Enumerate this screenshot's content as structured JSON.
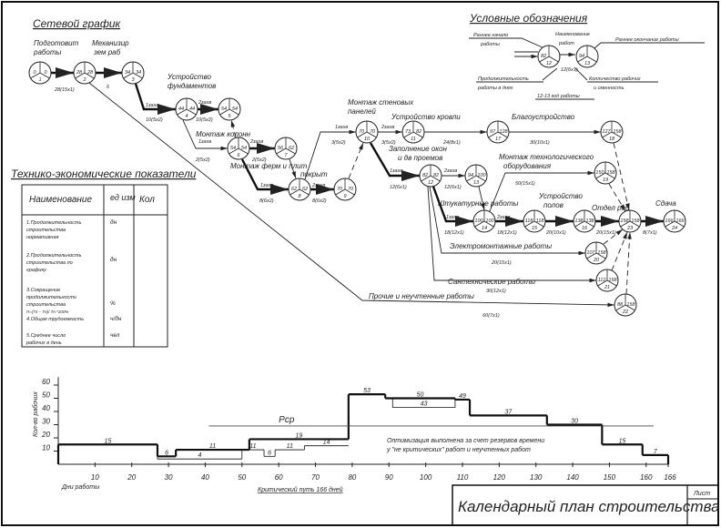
{
  "headings": {
    "network": "Сетевой график",
    "legend": "Условные обозначения",
    "indicators": "Технико-экономические показатели"
  },
  "legend": {
    "early_start": [
      "Раннее начало",
      "работы"
    ],
    "work_name": [
      "Наименование",
      "работ"
    ],
    "early_finish": "Раннее окончание работы",
    "duration": [
      "Продолжительность",
      "работы в днях"
    ],
    "workers": [
      "Колличество рабочих",
      "и сменность"
    ],
    "code": "12-13 код работы",
    "sample_label": "12(6х1)",
    "node_a": [
      "82",
      "",
      "12"
    ],
    "node_b": [
      "94",
      "",
      "13"
    ]
  },
  "nodes": [
    [
      "0",
      "0",
      "1"
    ],
    [
      "28",
      "28",
      "2"
    ],
    [
      "34",
      "34",
      "3"
    ],
    [
      "44",
      "44",
      "4"
    ],
    [
      "54",
      "54",
      "5"
    ],
    [
      "54",
      "54",
      "6"
    ],
    [
      "56",
      "62",
      "7"
    ],
    [
      "62",
      "62",
      "8"
    ],
    [
      "70",
      "70",
      "9"
    ],
    [
      "70",
      "70",
      "10"
    ],
    [
      "73",
      "82",
      "11"
    ],
    [
      "82",
      "82",
      "12"
    ],
    [
      "94",
      "100",
      "13"
    ],
    [
      "100",
      "100",
      "14"
    ],
    [
      "118",
      "118",
      "15"
    ],
    [
      "138",
      "138",
      "16"
    ],
    [
      "97",
      "128",
      "17"
    ],
    [
      "127",
      "158",
      "18"
    ],
    [
      "150",
      "158",
      "19"
    ],
    [
      "107",
      "158",
      "20"
    ],
    [
      "112",
      "158",
      "21"
    ],
    [
      "88",
      "158",
      "22"
    ],
    [
      "158",
      "158",
      "23"
    ],
    [
      "166",
      "166",
      "24"
    ]
  ],
  "activities": [
    [
      "Подготовит",
      "работы"
    ],
    [
      "Механизир",
      "зем раб"
    ],
    [
      "Устройство",
      "фундаментов"
    ],
    [
      "Монтаж колонн"
    ],
    [
      "Монтаж ферм и плит",
      "покрыт"
    ],
    [
      "Монтаж стеновых",
      "панелей"
    ],
    [
      "Устройство кровли"
    ],
    [
      "Благоустройство"
    ],
    [
      "Заполнение окон",
      "и дв проемов"
    ],
    [
      "Монтаж технологического",
      "оборудования"
    ],
    [
      "Штукатурные работы"
    ],
    [
      "Устройство",
      "полов"
    ],
    [
      "Отдел раб"
    ],
    [
      "Сдача"
    ],
    [
      "Электромонтажные работы"
    ],
    [
      "Сантехнические работы"
    ],
    [
      "Прочие и неучтенные работы"
    ]
  ],
  "edge_labels": [
    "28(15х1)",
    "6",
    "1захв",
    "10(5х2)",
    "2захв",
    "10(5х2)",
    "1захв",
    "2(5х2)",
    "2захв",
    "2(5х2)",
    "1захв",
    "8(6х2)",
    "2захв",
    "8(6х2)",
    "1захв",
    "3(5х2)",
    "2захв",
    "3(5х2)",
    "24(8х1)",
    "30(10х1)",
    "1захв",
    "12(6х1)",
    "2захв",
    "12(6х1)",
    "50(15х1)",
    "1захв",
    "18(12х1)",
    "2захв",
    "18(12х1)",
    "20(10х1)",
    "20(15х1)",
    "8(7х1)",
    "20(15х1)",
    "30(12х1)",
    "60(7х1)"
  ],
  "indicators_table": {
    "headers": [
      "Наименование",
      "ед изм",
      "Кол"
    ],
    "rows": [
      {
        "name": [
          "1.Продолжительность",
          "строительства",
          "нормативная"
        ],
        "unit": "дн",
        "value": ""
      },
      {
        "name": [
          "2.Продолжительность",
          "строительства по",
          "графику"
        ],
        "unit": "дн",
        "value": ""
      },
      {
        "name": [
          "3.Сокращение",
          "продолжительности",
          "строительства",
          "П=(Тг – Тн)/ Тн *100%"
        ],
        "unit": "%",
        "value": ""
      },
      {
        "name": [
          "4.Общая трудоемкость"
        ],
        "unit": "ч/дн",
        "value": ""
      },
      {
        "name": [
          "5.Среднее число",
          "рабочих  в день"
        ],
        "unit": "чел",
        "value": ""
      }
    ]
  },
  "chart_data": {
    "type": "line",
    "ylabel": "Кол-во рабочих",
    "xlabel": "Дни работы",
    "xlim": [
      0,
      166
    ],
    "ylim": [
      0,
      60
    ],
    "x_ticks": [
      10,
      20,
      30,
      40,
      50,
      60,
      70,
      80,
      90,
      100,
      110,
      120,
      130,
      140,
      150,
      160,
      166
    ],
    "y_ticks": [
      10,
      20,
      30,
      40,
      50,
      60
    ],
    "optimized_steps": [
      [
        0,
        27,
        15
      ],
      [
        27,
        32,
        6
      ],
      [
        32,
        52,
        11
      ],
      [
        52,
        79,
        19
      ],
      [
        79,
        89,
        53
      ],
      [
        89,
        108,
        50
      ],
      [
        108,
        112,
        49
      ],
      [
        112,
        133,
        37
      ],
      [
        133,
        148,
        30
      ],
      [
        148,
        159,
        15
      ],
      [
        159,
        166,
        7
      ]
    ],
    "original_steps": [
      [
        27,
        50,
        4
      ],
      [
        50,
        56,
        11
      ],
      [
        56,
        59,
        6
      ],
      [
        59,
        67,
        11
      ],
      [
        67,
        79,
        14
      ],
      [
        91,
        108,
        43
      ]
    ],
    "average": {
      "label": "Pср",
      "value": 29,
      "from": 41,
      "to": 162
    },
    "critical_path": "Критический путь 166 дней",
    "note": [
      "Оптимизация выполнена за счет резервов времени",
      "у \"не критических\" работ и неучтенных работ"
    ]
  },
  "title_block": {
    "title": "Календарный план строительства",
    "sheet": "Лист"
  }
}
